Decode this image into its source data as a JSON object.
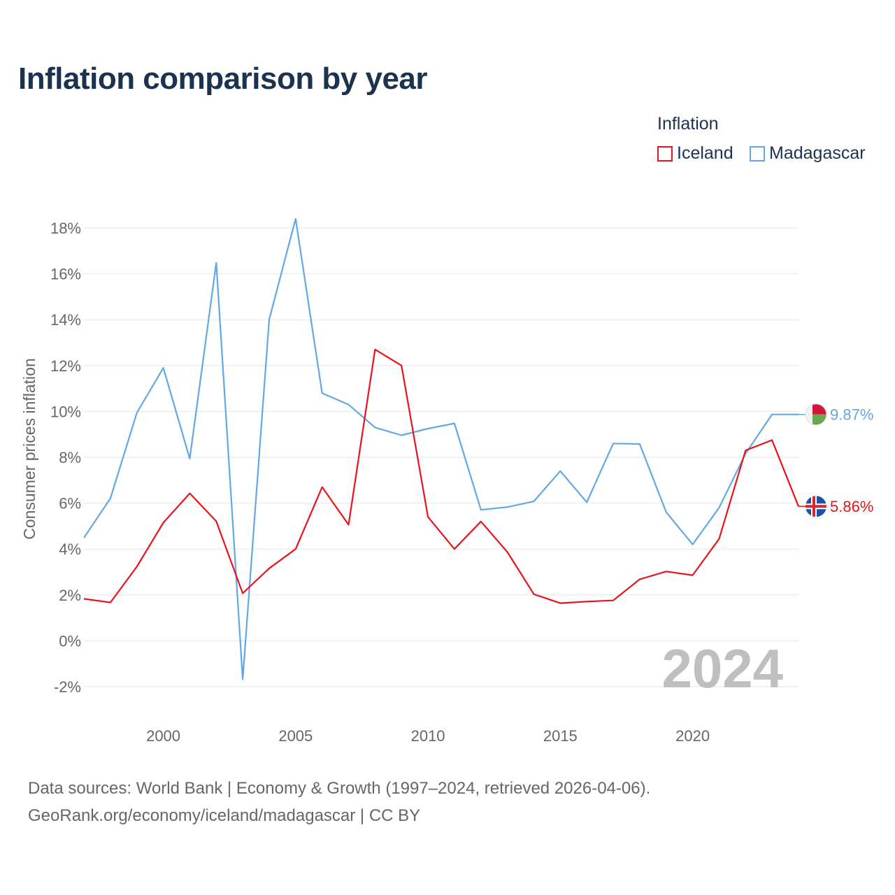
{
  "title": "Inflation comparison by year",
  "legend": {
    "title": "Inflation",
    "items": [
      {
        "label": "Iceland",
        "color": "#e8131b"
      },
      {
        "label": "Madagascar",
        "color": "#62a8e5"
      }
    ]
  },
  "chart_data": {
    "type": "line",
    "title": "Inflation comparison by year",
    "xlabel": "",
    "ylabel": "Consumer prices inflation",
    "xlim": [
      1997,
      2024
    ],
    "ylim": [
      -3,
      19
    ],
    "x_ticks": [
      2000,
      2005,
      2010,
      2015,
      2020
    ],
    "y_ticks": [
      -2,
      0,
      2,
      4,
      6,
      8,
      10,
      12,
      14,
      16,
      18
    ],
    "y_tick_labels": [
      "-2%",
      "0%",
      "2%",
      "4%",
      "6%",
      "8%",
      "10%",
      "12%",
      "14%",
      "16%",
      "18%"
    ],
    "x": [
      1997,
      1998,
      1999,
      2000,
      2001,
      2002,
      2003,
      2004,
      2005,
      2006,
      2007,
      2008,
      2009,
      2010,
      2011,
      2012,
      2013,
      2014,
      2015,
      2016,
      2017,
      2018,
      2019,
      2020,
      2021,
      2022,
      2023,
      2024
    ],
    "series": [
      {
        "name": "Iceland",
        "color": "#e8131b",
        "flag": "iceland",
        "values": [
          1.83,
          1.67,
          3.23,
          5.15,
          6.43,
          5.21,
          2.07,
          3.16,
          4.0,
          6.7,
          5.06,
          12.7,
          12.0,
          5.4,
          4.0,
          5.2,
          3.87,
          2.03,
          1.64,
          1.71,
          1.76,
          2.68,
          3.02,
          2.86,
          4.44,
          8.3,
          8.75,
          5.86
        ],
        "end_label": "5.86%"
      },
      {
        "name": "Madagascar",
        "color": "#62a8e5",
        "flag": "madagascar",
        "values": [
          4.49,
          6.21,
          9.94,
          11.9,
          7.94,
          16.48,
          -1.68,
          14.01,
          18.4,
          10.8,
          10.3,
          9.3,
          8.96,
          9.25,
          9.48,
          5.71,
          5.83,
          6.08,
          7.4,
          6.04,
          8.6,
          8.58,
          5.61,
          4.2,
          5.8,
          8.16,
          9.87,
          9.87
        ],
        "end_label": "9.87%"
      }
    ],
    "watermark_year": "2024"
  },
  "source": {
    "line1": "Data sources: World Bank | Economy & Growth (1997–2024, retrieved 2026-04-06).",
    "line2": "GeoRank.org/economy/iceland/madagascar | CC BY"
  }
}
